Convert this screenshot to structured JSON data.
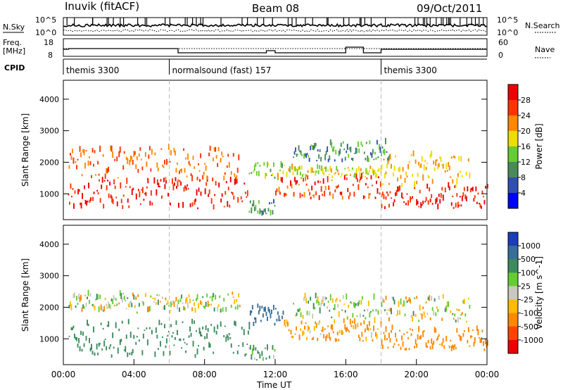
{
  "header": {
    "station": "Inuvik (fitACF)",
    "beam": "Beam 08",
    "date": "09/Oct/2011"
  },
  "summary_panels": {
    "nsky_label": "N.Sky",
    "nsearch_label": "N.Search",
    "freq_label_line1": "Freq.",
    "freq_label_line2": "[MHz]",
    "nave_label": "Nave",
    "cpid_label": "CPID",
    "noise_ticks": [
      "10^5",
      "10^0"
    ],
    "freq_ticks": [
      "18",
      "8"
    ],
    "nave_ticks": [
      "60",
      "0"
    ]
  },
  "cpid_segments": [
    {
      "label": "themis 3300",
      "start_hour": 0
    },
    {
      "label": "normalsound (fast) 157",
      "start_hour": 6
    },
    {
      "label": "themis 3300",
      "start_hour": 18
    }
  ],
  "chart_data": [
    {
      "type": "heatmap",
      "title": "",
      "xlabel": "Time UT",
      "ylabel": "Slant Range [km]",
      "xlim": [
        0,
        24
      ],
      "ylim": [
        180,
        4600
      ],
      "x_ticks": [
        "00:00",
        "04:00",
        "08:00",
        "12:00",
        "16:00",
        "20:00",
        "00:00"
      ],
      "y_ticks": [
        1000,
        2000,
        3000,
        4000
      ],
      "colorbar_label": "Power [dB]",
      "colorbar_ticks": [
        4,
        8,
        12,
        16,
        20,
        24,
        28
      ],
      "colorbar_range": [
        0,
        32
      ],
      "colors": [
        "#0000ff",
        "#3050b0",
        "#4a8a5a",
        "#66cc33",
        "#eedd00",
        "#ff8800",
        "#ff3300",
        "#ee0000"
      ],
      "bands": [
        {
          "t_start": 0.2,
          "t_end": 10.5,
          "r_min": 500,
          "r_max": 1400,
          "value": 28
        },
        {
          "t_start": 0.3,
          "t_end": 10.0,
          "r_min": 1400,
          "r_max": 2400,
          "value": 24
        },
        {
          "t_start": 10.5,
          "t_end": 12.0,
          "r_min": 300,
          "r_max": 700,
          "value": 10
        },
        {
          "t_start": 10.5,
          "t_end": 12.5,
          "r_min": 1400,
          "r_max": 2000,
          "value": 14
        },
        {
          "t_start": 12.0,
          "t_end": 18.0,
          "r_min": 800,
          "r_max": 1500,
          "value": 26
        },
        {
          "t_start": 12.5,
          "t_end": 18.0,
          "r_min": 1500,
          "r_max": 1800,
          "value": 18
        },
        {
          "t_start": 13.0,
          "t_end": 18.5,
          "r_min": 2000,
          "r_max": 2600,
          "value": 10
        },
        {
          "t_start": 18.0,
          "t_end": 24.0,
          "r_min": 500,
          "r_max": 1200,
          "value": 28
        },
        {
          "t_start": 18.0,
          "t_end": 23.0,
          "r_min": 1200,
          "r_max": 2200,
          "value": 20
        }
      ]
    },
    {
      "type": "heatmap",
      "title": "",
      "xlabel": "Time UT",
      "ylabel": "Slant Range [km]",
      "xlim": [
        0,
        24
      ],
      "ylim": [
        180,
        4600
      ],
      "x_ticks": [
        "00:00",
        "04:00",
        "08:00",
        "12:00",
        "16:00",
        "20:00",
        "00:00"
      ],
      "y_ticks": [
        1000,
        2000,
        3000,
        4000
      ],
      "colorbar_label": "Velocity [m s^-1]",
      "colorbar_ticks": [
        "1000",
        "500",
        "100",
        "25",
        "-25",
        "-100",
        "-500",
        "-1000"
      ],
      "colors": [
        "#1a3cbd",
        "#3a6e9a",
        "#3d8a5e",
        "#66cc33",
        "#c8c8c0",
        "#ffbb00",
        "#ff8800",
        "#ff4400",
        "#ee0000"
      ],
      "bands": [
        {
          "t_start": 0.3,
          "t_end": 10.5,
          "r_min": 400,
          "r_max": 1500,
          "value": 300
        },
        {
          "t_start": 0.3,
          "t_end": 10.0,
          "r_min": 1800,
          "r_max": 2400,
          "value": 0
        },
        {
          "t_start": 10.5,
          "t_end": 12.5,
          "r_min": 1400,
          "r_max": 2000,
          "value": 700
        },
        {
          "t_start": 10.5,
          "t_end": 12.0,
          "r_min": 300,
          "r_max": 700,
          "value": 120
        },
        {
          "t_start": 12.5,
          "t_end": 18.0,
          "r_min": 900,
          "r_max": 1500,
          "value": -150
        },
        {
          "t_start": 13.0,
          "t_end": 18.0,
          "r_min": 1600,
          "r_max": 2300,
          "value": 60
        },
        {
          "t_start": 18.0,
          "t_end": 24.0,
          "r_min": 600,
          "r_max": 1300,
          "value": -250
        },
        {
          "t_start": 18.0,
          "t_end": 23.0,
          "r_min": 1500,
          "r_max": 2300,
          "value": 0
        }
      ]
    }
  ]
}
